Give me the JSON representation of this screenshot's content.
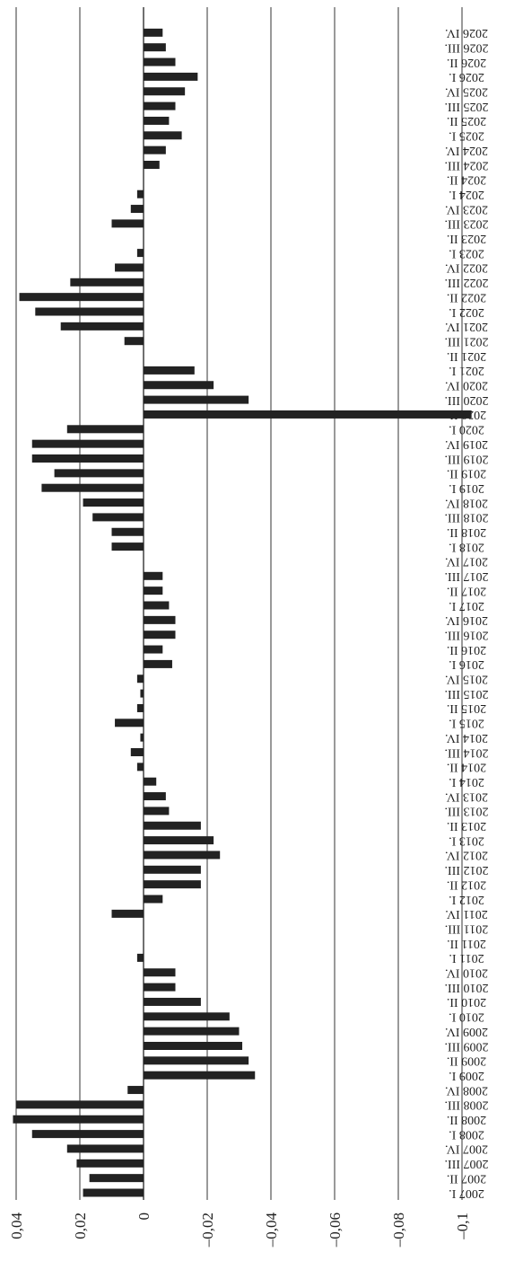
{
  "chart_data": {
    "type": "bar",
    "orientation": "horizontal, rotated view",
    "grid": true,
    "legend": "none",
    "title": "",
    "xlabel": "",
    "ylabel": "",
    "ylim": [
      -0.1,
      0.04
    ],
    "value_ticks": [
      "0,04",
      "0,02",
      "0",
      "–0,02",
      "–0,04",
      "–0,06",
      "–0,08",
      "–0,1"
    ],
    "value_tick_values": [
      0.04,
      0.02,
      0,
      -0.02,
      -0.04,
      -0.06,
      -0.08,
      -0.1
    ],
    "bar_color": "#222222",
    "categories": [
      "2007 I.",
      "2007 II.",
      "2007 III.",
      "2007 IV.",
      "2008 I.",
      "2008 II.",
      "2008 III.",
      "2008 IV.",
      "2009 I.",
      "2009 II.",
      "2009 III.",
      "2009 IV.",
      "2010 I.",
      "2010 II.",
      "2010 III.",
      "2010 IV.",
      "2011 I.",
      "2011 II.",
      "2011 III.",
      "2011 IV.",
      "2012 I.",
      "2012 II.",
      "2012 III.",
      "2012 IV.",
      "2013 I.",
      "2013 II.",
      "2013 III.",
      "2013 IV.",
      "2014 I.",
      "2014 II.",
      "2014 III.",
      "2014 IV.",
      "2015 I.",
      "2015 II.",
      "2015 III.",
      "2015 IV.",
      "2016 I.",
      "2016 II.",
      "2016 III.",
      "2016 IV.",
      "2017 I.",
      "2017 II.",
      "2017 III.",
      "2017 IV.",
      "2018 I.",
      "2018 II.",
      "2018 III.",
      "2018 IV.",
      "2019 I.",
      "2019 II.",
      "2019 III.",
      "2019 IV.",
      "2020 I.",
      "2020 II.",
      "2020 III.",
      "2020 IV.",
      "2021 I.",
      "2021 II.",
      "2021 III.",
      "2021 IV.",
      "2022 I.",
      "2022 II.",
      "2022 III.",
      "2022 IV.",
      "2023 I.",
      "2023 II.",
      "2023 III.",
      "2023 IV.",
      "2024 I.",
      "2024 II.",
      "2024 III.",
      "2024 IV.",
      "2025 I.",
      "2025 II.",
      "2025 III.",
      "2025 IV.",
      "2026 I.",
      "2026 II.",
      "2026 III.",
      "2026 IV."
    ],
    "values": [
      0.019,
      0.017,
      0.021,
      0.024,
      0.035,
      0.041,
      0.04,
      0.005,
      -0.035,
      -0.033,
      -0.031,
      -0.03,
      -0.027,
      -0.018,
      -0.01,
      -0.01,
      0.002,
      0,
      0,
      0.01,
      -0.006,
      -0.018,
      -0.018,
      -0.024,
      -0.022,
      -0.018,
      -0.008,
      -0.007,
      -0.004,
      0.002,
      0.004,
      0.001,
      0.009,
      0.002,
      0.001,
      0.002,
      -0.009,
      -0.006,
      -0.01,
      -0.01,
      -0.008,
      -0.006,
      -0.006,
      0,
      0.01,
      0.01,
      0.016,
      0.019,
      0.032,
      0.028,
      0.035,
      0.035,
      0.024,
      -0.103,
      -0.033,
      -0.022,
      -0.016,
      0,
      0.006,
      0.026,
      0.034,
      0.039,
      0.023,
      0.009,
      0.002,
      0,
      0.01,
      0.004,
      0.002,
      0,
      -0.005,
      -0.007,
      -0.012,
      -0.008,
      -0.01,
      -0.013,
      -0.017,
      -0.01,
      -0.007,
      -0.006
    ]
  }
}
